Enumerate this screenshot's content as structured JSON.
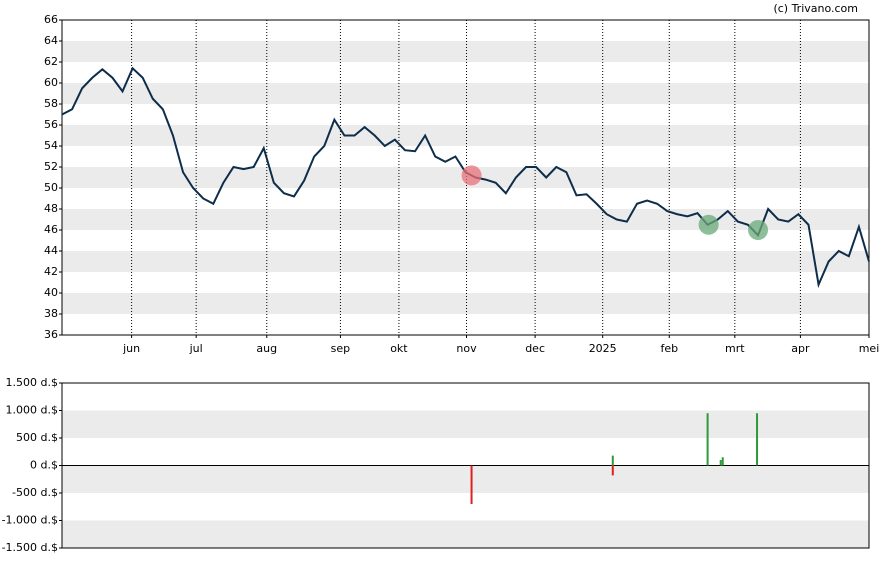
{
  "credit": "(c) Trivano.com",
  "chart_data": [
    {
      "type": "line",
      "x": [
        0,
        1,
        2,
        3,
        4,
        5,
        6,
        7,
        8,
        9,
        10,
        11,
        12,
        13,
        14,
        15,
        16,
        17,
        18,
        19,
        20,
        21,
        22,
        23,
        24,
        25,
        26,
        27,
        28,
        29,
        30,
        31,
        32,
        33,
        34,
        35,
        36,
        37,
        38,
        39,
        40,
        41,
        42,
        43,
        44,
        45,
        46,
        47,
        48,
        49,
        50,
        51,
        52,
        53,
        54,
        55,
        56,
        57,
        58,
        59,
        60,
        61,
        62,
        63,
        64,
        65,
        66,
        67,
        68,
        69,
        70,
        71,
        72,
        73,
        74,
        75,
        76,
        77,
        78,
        79,
        80
      ],
      "series": [
        {
          "color": "#0d2d4a",
          "values": [
            57,
            57.5,
            59.5,
            60.5,
            61.3,
            60.5,
            59.2,
            61.4,
            60.5,
            58.5,
            57.5,
            55,
            51.5,
            50,
            49,
            48.5,
            50.5,
            52,
            51.8,
            52,
            53.8,
            50.5,
            49.5,
            49.2,
            50.7,
            53,
            54,
            56.5,
            55,
            55,
            55.8,
            55,
            54,
            54.6,
            53.6,
            53.5,
            55,
            53,
            52.5,
            53,
            51.5,
            51,
            50.8,
            50.5,
            49.5,
            51,
            52,
            52,
            51,
            52,
            51.5,
            49.3,
            49.4,
            48.5,
            47.5,
            47,
            46.8,
            48.5,
            48.8,
            48.5,
            47.8,
            47.5,
            47.3,
            47.6,
            46.5,
            47,
            47.8,
            46.8,
            46.5,
            45.5,
            48,
            47,
            46.8,
            47.5,
            46.5,
            40.8,
            43,
            44,
            43.5,
            46.3,
            43
          ]
        }
      ],
      "markers": [
        {
          "x": 40.6,
          "y": 51.2,
          "color": "#e8707a"
        },
        {
          "x": 64.1,
          "y": 46.5,
          "color": "#6aaa78"
        },
        {
          "x": 69,
          "y": 46,
          "color": "#6aaa78"
        }
      ],
      "xlim": [
        0,
        80
      ],
      "xticks": [
        {
          "value": 6.9,
          "label": "jun"
        },
        {
          "value": 13.3,
          "label": "jul"
        },
        {
          "value": 20.3,
          "label": "aug"
        },
        {
          "value": 27.6,
          "label": "sep"
        },
        {
          "value": 33.4,
          "label": "okt"
        },
        {
          "value": 40.1,
          "label": "nov"
        },
        {
          "value": 46.9,
          "label": "dec"
        },
        {
          "value": 53.6,
          "label": "2025"
        },
        {
          "value": 60.2,
          "label": "feb"
        },
        {
          "value": 66.7,
          "label": "mrt"
        },
        {
          "value": 73.2,
          "label": "apr"
        },
        {
          "value": 80,
          "label": "mei"
        }
      ],
      "ylim": [
        36,
        66
      ],
      "yticks": [
        36,
        38,
        40,
        42,
        44,
        46,
        48,
        50,
        52,
        54,
        56,
        58,
        60,
        62,
        64,
        66
      ],
      "x_grid": true
    },
    {
      "type": "bar",
      "series": [
        {
          "color": "#2e9a3a",
          "x": [
            54.6,
            64.0,
            65.3,
            65.5,
            68.9
          ],
          "values": [
            180,
            950,
            100,
            150,
            950
          ]
        },
        {
          "color": "#e02020",
          "x": [
            40.6,
            54.6
          ],
          "values": [
            -700,
            -180
          ]
        }
      ],
      "xlim": [
        0,
        80
      ],
      "ylim": [
        -1500,
        1500
      ],
      "yticks": [
        {
          "value": -1500,
          "label": "-1.500 d.$"
        },
        {
          "value": -1000,
          "label": "-1.000 d.$"
        },
        {
          "value": -500,
          "label": "-500 d.$"
        },
        {
          "value": 0,
          "label": "0 d.$"
        },
        {
          "value": 500,
          "label": "500 d.$"
        },
        {
          "value": 1000,
          "label": "1.000 d.$"
        },
        {
          "value": 1500,
          "label": "1.500 d.$"
        }
      ],
      "zero_line": true
    }
  ]
}
